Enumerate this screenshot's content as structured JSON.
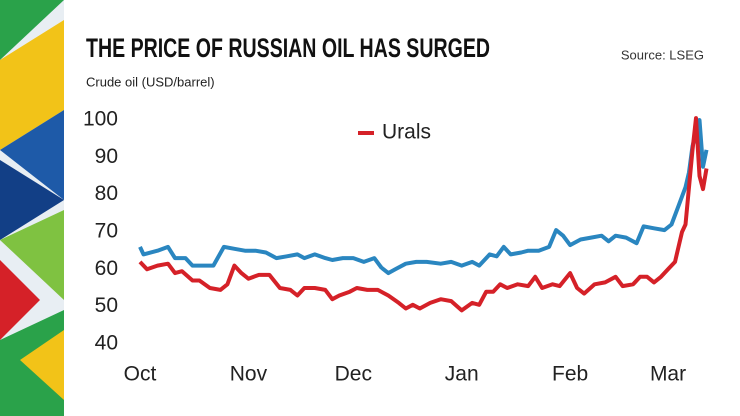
{
  "chart_data": {
    "type": "line",
    "title": "THE PRICE OF RUSSIAN OIL HAS SURGED",
    "source": "Source: LSEG",
    "y_label": "Crude oil (USD/barrel)",
    "xlim": [
      0,
      163
    ],
    "xticks": [
      {
        "value": 0,
        "label": "Oct"
      },
      {
        "value": 31,
        "label": "Nov"
      },
      {
        "value": 61,
        "label": "Dec"
      },
      {
        "value": 92,
        "label": "Jan"
      },
      {
        "value": 123,
        "label": "Feb"
      },
      {
        "value": 151,
        "label": "Mar"
      }
    ],
    "ylim": [
      40,
      100
    ],
    "yticks": [
      40,
      50,
      60,
      70,
      80,
      90,
      100
    ],
    "legend": "top-center",
    "series": [
      {
        "color": "#2a86c0",
        "x": [
          0,
          1,
          5,
          8,
          10,
          13,
          15,
          18,
          21,
          24,
          27,
          30,
          33,
          36,
          39,
          42,
          45,
          47,
          50,
          53,
          55,
          58,
          61,
          64,
          67,
          69,
          71,
          73,
          76,
          79,
          82,
          86,
          89,
          92,
          95,
          97,
          100,
          102,
          104,
          106,
          109,
          111,
          114,
          117,
          119,
          121,
          123,
          126,
          129,
          132,
          134,
          136,
          139,
          142,
          144,
          147,
          150,
          152,
          154,
          156,
          157,
          158,
          160,
          161,
          162
        ],
        "values": [
          66,
          64,
          65,
          66,
          63,
          63,
          61,
          61,
          61,
          66,
          65.5,
          65,
          65,
          64.5,
          63,
          63.5,
          64,
          63,
          64,
          63,
          62.5,
          63,
          63,
          62,
          63,
          60.5,
          59,
          60,
          61.5,
          62,
          62,
          61.5,
          62,
          61,
          62,
          61,
          64,
          63.5,
          66,
          64,
          64.5,
          65,
          65,
          66,
          70.5,
          69,
          66.5,
          68,
          68.5,
          69,
          67.5,
          69,
          68.5,
          67,
          71.5,
          71,
          70.5,
          72,
          77,
          82,
          86,
          93,
          100,
          87.5,
          92
        ]
      },
      {
        "name": "Urals",
        "color": "#d52128",
        "x": [
          0,
          2,
          5,
          8,
          10,
          12,
          15,
          17,
          20,
          23,
          25,
          27,
          29,
          31,
          34,
          37,
          40,
          43,
          45,
          47,
          50,
          53,
          55,
          57,
          60,
          62,
          65,
          68,
          71,
          74,
          76,
          78,
          80,
          83,
          86,
          89,
          92,
          95,
          97,
          99,
          101,
          103,
          105,
          108,
          111,
          113,
          115,
          118,
          120,
          123,
          125,
          127,
          130,
          133,
          136,
          138,
          141,
          143,
          145,
          147,
          149,
          151,
          153,
          154,
          155,
          156,
          157,
          158,
          159,
          160,
          161,
          162
        ],
        "values": [
          62,
          60,
          61,
          61.5,
          59,
          59.5,
          57,
          57,
          55,
          54.5,
          56,
          61,
          59,
          57.5,
          58.5,
          58.5,
          55,
          54.5,
          53,
          55,
          55,
          54.5,
          52,
          53,
          54,
          55,
          54.5,
          54.5,
          53,
          51,
          49.5,
          50.5,
          49.5,
          51,
          52,
          51.5,
          49,
          51,
          50.5,
          54,
          54,
          56,
          55,
          56,
          55.5,
          58,
          55,
          56,
          55.5,
          59,
          55,
          53.5,
          56,
          56.5,
          58,
          55.5,
          56,
          58,
          58,
          56.5,
          58,
          60,
          62,
          66,
          70,
          72,
          82,
          92,
          100.5,
          85,
          81.5,
          87
        ]
      }
    ]
  }
}
